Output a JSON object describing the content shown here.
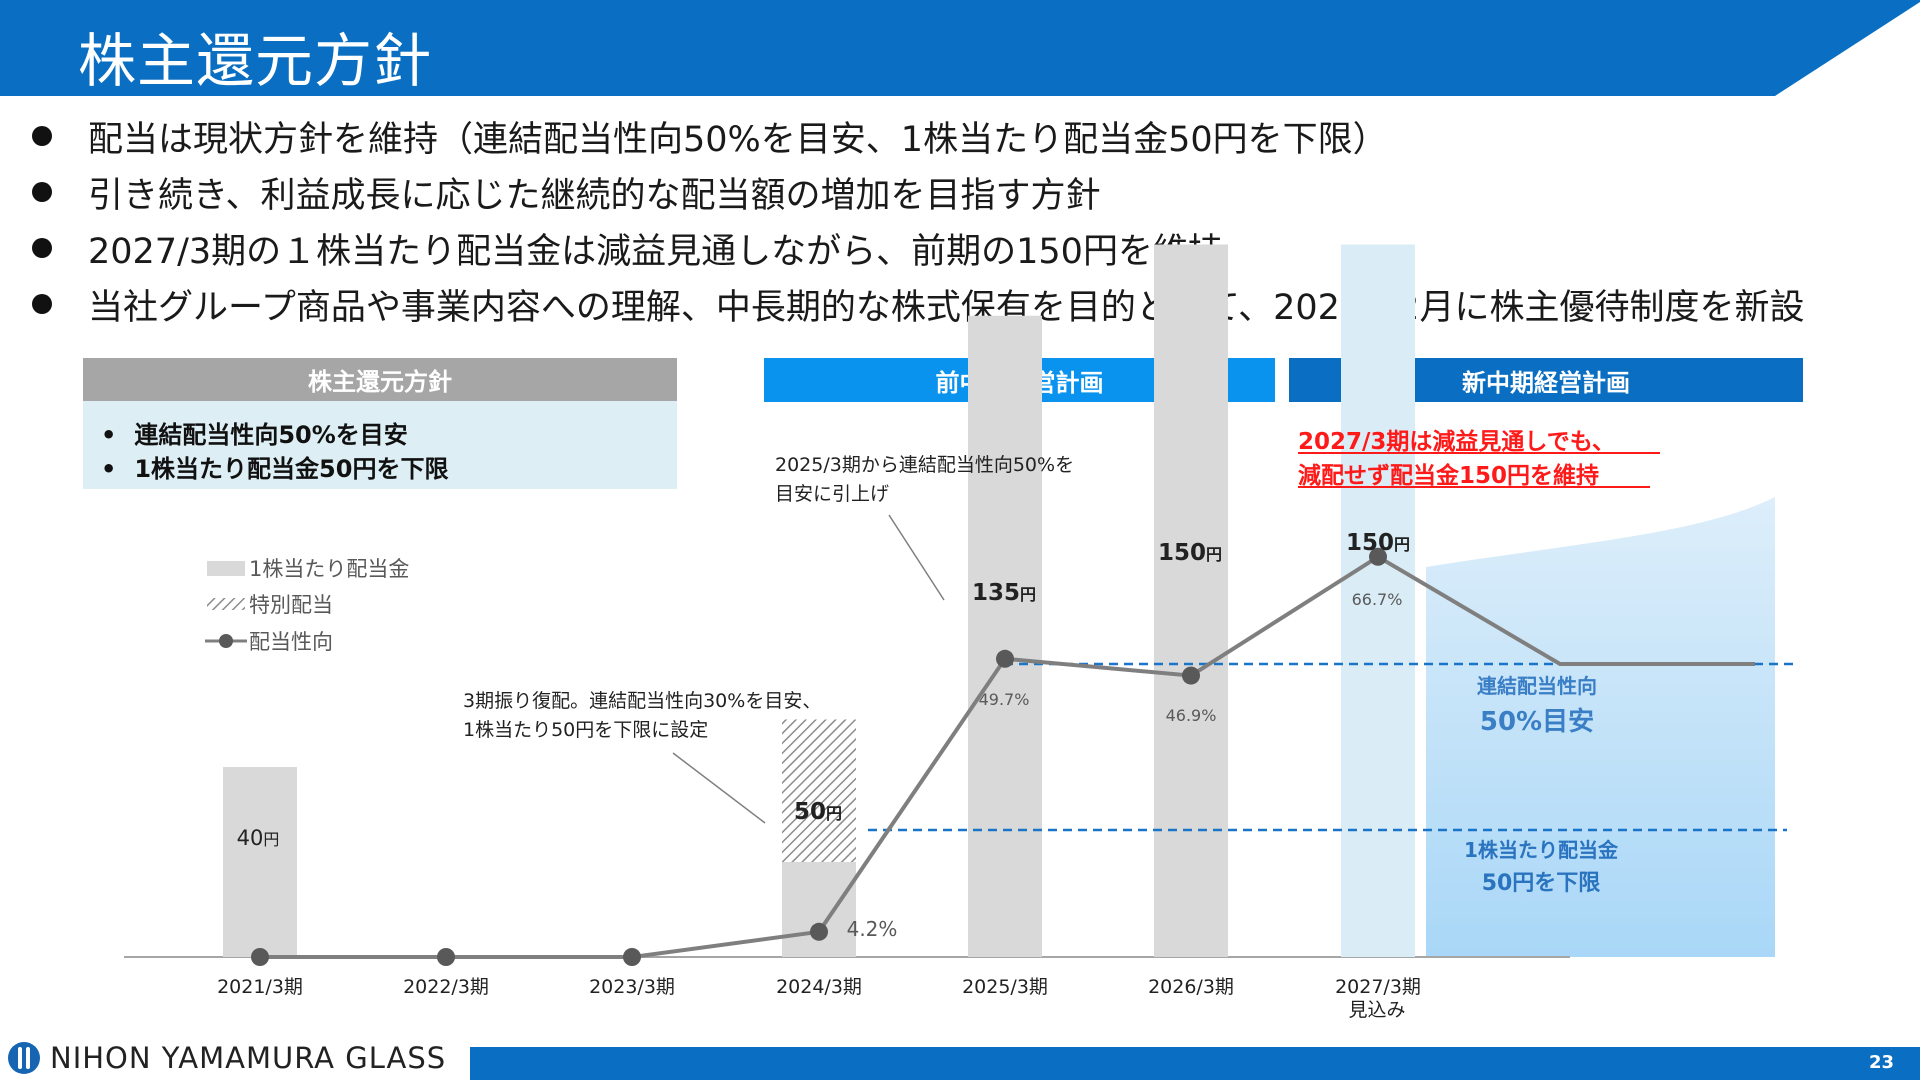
{
  "slide": {
    "title": "株主還元方針",
    "page_number": "23",
    "logo_text": "NIHON YAMAMURA GLASS",
    "colors": {
      "title_bar": "#0a6fc2",
      "prev_plan": "#0a93ee",
      "new_plan": "#0a6fc2",
      "bar_gray": "#d9d9d9",
      "line": "#7f7f7f",
      "dashed": "#1a75c9",
      "red_text": "#ff1a1a"
    }
  },
  "bullets": [
    "配当は現状方針を維持（連結配当性向50%を目安、1株当たり配当金50円を下限）",
    "引き続き、利益成長に応じた継続的な配当額の増加を目指す方針",
    "2027/3期の１株当たり配当金は減益見通しながら、前期の150円を維持",
    "当社グループ商品や事業内容への理解、中長期的な株式保有を目的として、2026年2月に株主優待制度を新設"
  ],
  "policy_box": {
    "title": "株主還元方針",
    "items": [
      "連結配当性向50%を目安",
      "1株当たり配当金50円を下限"
    ],
    "bullet": "•"
  },
  "plans": {
    "prev": "前中期経営計画",
    "new": "新中期経営計画"
  },
  "chart_data": {
    "type": "bar",
    "categories": [
      "2021/3期",
      "2022/3期",
      "2023/3期",
      "2024/3期",
      "2025/3期",
      "2026/3期",
      "2027/3期"
    ],
    "category_sublabels": [
      "",
      "",
      "",
      "",
      "",
      "",
      "見込み"
    ],
    "legend": [
      "1株当たり配当金",
      "特別配当",
      "配当性向"
    ],
    "series": [
      {
        "name": "1株当たり配当金",
        "values": [
          40,
          0,
          0,
          20,
          135,
          150,
          150
        ]
      },
      {
        "name": "特別配当",
        "values": [
          0,
          0,
          0,
          30,
          0,
          0,
          0
        ]
      },
      {
        "name": "配当性向",
        "values": [
          0,
          0,
          0,
          4.2,
          49.7,
          46.9,
          66.7
        ]
      }
    ],
    "dividend_labels": [
      {
        "num": "40",
        "unit": "円",
        "bold": false
      },
      null,
      null,
      {
        "num": "50",
        "unit": "円",
        "bold": true
      },
      {
        "num": "135",
        "unit": "円",
        "bold": true
      },
      {
        "num": "150",
        "unit": "円",
        "bold": true
      },
      {
        "num": "150",
        "unit": "円",
        "bold": true
      }
    ],
    "payout_labels": [
      "",
      "",
      "",
      "4.2%",
      "49.7%",
      "46.9%",
      "66.7%"
    ],
    "dashed_lines": [
      {
        "label_lines": [
          "連結配当性向",
          "50%目安"
        ],
        "level": "50%"
      },
      {
        "label_lines": [
          "1株当たり配当金",
          "50円を下限"
        ],
        "level": "50円"
      }
    ],
    "annotations": [
      [
        "3期振り復配。連結配当性向30%を目安、",
        "1株当たり50円を下限に設定"
      ],
      [
        "2025/3期から連結配当性向50%を",
        "目安に引上げ"
      ]
    ],
    "highlight": [
      "2027/3期は減益見通しでも、",
      "減配せず配当金150円を維持"
    ],
    "grid": false
  }
}
